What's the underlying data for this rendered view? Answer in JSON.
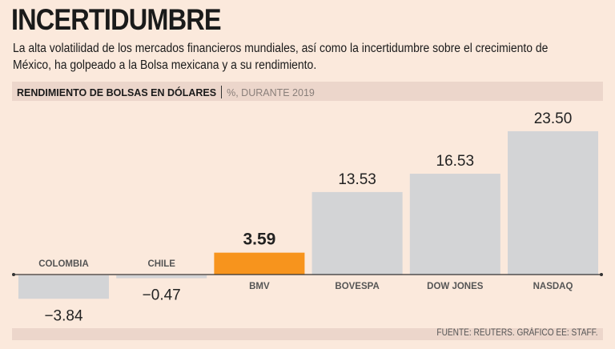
{
  "header": {
    "title": "INCERTIDUMBRE",
    "subtitle": "La alta volatilidad de los mercados financieros mundiales, así como la incertidumbre sobre el crecimiento de México, ha golpeado a la Bolsa mexicana y a su rendimiento."
  },
  "chart_data": {
    "type": "bar",
    "title": "RENDIMIENTO DE BOLSAS EN DÓLARES",
    "subtitle": "%, DURANTE 2019",
    "categories": [
      "COLOMBIA",
      "CHILE",
      "BMV",
      "BOVESPA",
      "DOW JONES",
      "NASDAQ"
    ],
    "values": [
      -3.84,
      -0.47,
      3.59,
      13.53,
      16.53,
      23.5
    ],
    "value_labels": [
      "−3.84",
      "−0.47",
      "3.59",
      "13.53",
      "16.53",
      "23.50"
    ],
    "highlight": "BMV",
    "xlabel": "",
    "ylabel": "",
    "ylim": [
      -3.84,
      23.5
    ],
    "grid": false,
    "colors": {
      "default": "#d3d4d6",
      "highlight": "#f7941d",
      "axis": "#333333"
    }
  },
  "footer": {
    "source": "FUENTE: REUTERS. GRÁFICO EE: STAFF."
  }
}
